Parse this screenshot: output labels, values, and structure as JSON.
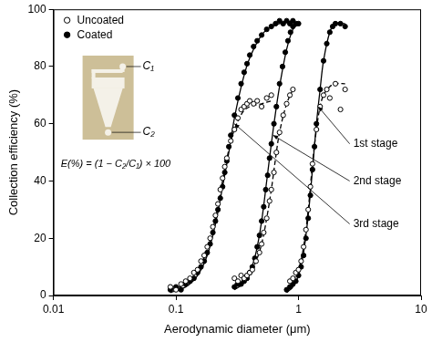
{
  "chart_data": {
    "type": "scatter",
    "x_label": "Aerodynamic diameter (μm)",
    "y_label": "Collection efficiency (%)",
    "log": "x",
    "grid": false,
    "legend": "top-left",
    "xlim": [
      0.01,
      10
    ],
    "xticks": [
      0.01,
      0.1,
      1,
      10
    ],
    "ylim": [
      0,
      100
    ],
    "yticks": [
      0,
      20,
      40,
      60,
      80,
      100
    ],
    "series": [
      {
        "name": "Uncoated",
        "type": "scatter",
        "marker": "circle_open",
        "color": "#000000",
        "x": [
          0.09,
          0.1,
          0.11,
          0.12,
          0.13,
          0.14,
          0.15,
          0.16,
          0.17,
          0.18,
          0.19,
          0.2,
          0.21,
          0.22,
          0.23,
          0.24,
          0.25,
          0.26,
          0.28,
          0.3,
          0.32,
          0.34,
          0.36,
          0.38,
          0.4,
          0.43,
          0.46,
          0.5,
          0.55,
          0.6,
          0.3,
          0.32,
          0.34,
          0.36,
          0.38,
          0.4,
          0.42,
          0.45,
          0.48,
          0.5,
          0.52,
          0.55,
          0.58,
          0.6,
          0.63,
          0.66,
          0.7,
          0.75,
          0.8,
          0.85,
          0.9,
          0.85,
          0.9,
          0.95,
          1.0,
          1.05,
          1.1,
          1.15,
          1.2,
          1.25,
          1.3,
          1.4,
          1.5,
          1.6,
          1.7,
          1.8,
          2.0,
          2.2,
          2.4
        ],
        "values": [
          3,
          2,
          4,
          5,
          6,
          8,
          9,
          12,
          14,
          17,
          20,
          24,
          28,
          32,
          37,
          41,
          45,
          48,
          54,
          58,
          62,
          65,
          66,
          67,
          68,
          67,
          68,
          66,
          69,
          70,
          6,
          5,
          7,
          6,
          7,
          8,
          9,
          12,
          15,
          18,
          22,
          27,
          33,
          37,
          43,
          50,
          57,
          63,
          67,
          70,
          72,
          5,
          6,
          8,
          9,
          12,
          17,
          23,
          30,
          38,
          46,
          58,
          66,
          70,
          72,
          69,
          74,
          65,
          72
        ]
      },
      {
        "name": "Coated",
        "type": "scatter",
        "marker": "circle_filled",
        "color": "#000000",
        "x": [
          0.09,
          0.1,
          0.11,
          0.12,
          0.13,
          0.14,
          0.15,
          0.16,
          0.17,
          0.18,
          0.19,
          0.2,
          0.21,
          0.22,
          0.23,
          0.24,
          0.25,
          0.26,
          0.27,
          0.28,
          0.3,
          0.32,
          0.34,
          0.36,
          0.38,
          0.4,
          0.43,
          0.46,
          0.5,
          0.55,
          0.6,
          0.65,
          0.7,
          0.75,
          0.8,
          0.85,
          0.9,
          0.3,
          0.32,
          0.34,
          0.36,
          0.38,
          0.4,
          0.42,
          0.44,
          0.46,
          0.48,
          0.5,
          0.52,
          0.54,
          0.56,
          0.58,
          0.6,
          0.63,
          0.66,
          0.7,
          0.74,
          0.78,
          0.82,
          0.86,
          0.9,
          0.95,
          1.0,
          0.8,
          0.85,
          0.9,
          0.95,
          1.0,
          1.05,
          1.1,
          1.15,
          1.2,
          1.25,
          1.3,
          1.35,
          1.4,
          1.5,
          1.6,
          1.7,
          1.8,
          1.9,
          2.0,
          2.2,
          2.4
        ],
        "values": [
          2,
          3,
          2,
          4,
          5,
          6,
          8,
          10,
          12,
          15,
          18,
          22,
          26,
          30,
          34,
          38,
          43,
          47,
          52,
          56,
          63,
          69,
          74,
          78,
          81,
          84,
          87,
          89,
          91,
          93,
          94,
          95,
          96,
          95,
          96,
          95,
          96,
          3,
          4,
          4,
          5,
          6,
          8,
          10,
          13,
          17,
          21,
          26,
          31,
          37,
          42,
          48,
          53,
          60,
          66,
          74,
          80,
          85,
          89,
          92,
          94,
          95,
          95,
          2,
          3,
          4,
          5,
          7,
          10,
          14,
          20,
          27,
          35,
          44,
          52,
          60,
          72,
          82,
          88,
          92,
          94,
          95,
          95,
          94
        ]
      },
      {
        "type": "line",
        "line_style": "solid",
        "color": "#000000",
        "x": [
          0.09,
          0.12,
          0.15,
          0.18,
          0.21,
          0.24,
          0.27,
          0.3,
          0.35,
          0.4,
          0.5,
          0.6,
          0.7,
          0.9
        ],
        "values": [
          1,
          3,
          7,
          14,
          25,
          38,
          50,
          62,
          75,
          83,
          91,
          94,
          95,
          96
        ]
      },
      {
        "type": "line",
        "line_style": "dashed",
        "color": "#000000",
        "x": [
          0.09,
          0.12,
          0.15,
          0.18,
          0.21,
          0.24,
          0.27,
          0.3,
          0.35,
          0.4,
          0.5,
          0.6
        ],
        "values": [
          2,
          4,
          9,
          16,
          27,
          40,
          51,
          58,
          64,
          66,
          67,
          68
        ]
      },
      {
        "type": "line",
        "line_style": "solid",
        "color": "#000000",
        "x": [
          0.3,
          0.35,
          0.4,
          0.45,
          0.5,
          0.55,
          0.6,
          0.65,
          0.7,
          0.8,
          0.9,
          1.0
        ],
        "values": [
          2,
          4,
          8,
          15,
          26,
          40,
          53,
          64,
          73,
          86,
          93,
          95
        ]
      },
      {
        "type": "line",
        "line_style": "dashed",
        "color": "#000000",
        "x": [
          0.3,
          0.35,
          0.4,
          0.45,
          0.5,
          0.55,
          0.6,
          0.65,
          0.7,
          0.8,
          0.9
        ],
        "values": [
          4,
          5,
          8,
          12,
          18,
          27,
          37,
          48,
          57,
          67,
          72
        ]
      },
      {
        "type": "line",
        "line_style": "solid",
        "color": "#000000",
        "x": [
          0.8,
          0.9,
          1.0,
          1.1,
          1.2,
          1.3,
          1.4,
          1.5,
          1.6,
          1.8,
          2.0,
          2.4
        ],
        "values": [
          1,
          3,
          7,
          15,
          28,
          44,
          60,
          72,
          82,
          92,
          95,
          95
        ]
      },
      {
        "type": "line",
        "line_style": "dashed",
        "color": "#000000",
        "x": [
          0.85,
          0.9,
          1.0,
          1.1,
          1.2,
          1.3,
          1.4,
          1.5,
          1.6,
          1.8,
          2.0,
          2.4
        ],
        "values": [
          3,
          5,
          9,
          17,
          30,
          46,
          58,
          66,
          70,
          73,
          74,
          74
        ]
      }
    ],
    "annotations": [
      {
        "text": "1st stage",
        "x": 2.8,
        "y": 53,
        "arrow_to": [
          1.45,
          66
        ]
      },
      {
        "text": "2nd stage",
        "x": 2.8,
        "y": 40,
        "arrow_to": [
          0.62,
          56
        ]
      },
      {
        "text": "3rd stage",
        "x": 2.8,
        "y": 25,
        "arrow_to": [
          0.3,
          60
        ]
      }
    ],
    "inset": {
      "inlet": {
        "text": "C₁",
        "x": 0.05,
        "y": 80
      },
      "outlet": {
        "text": "C₂",
        "x": 0.05,
        "y": 57
      },
      "formula": {
        "text": "E(%) = (1 − C₂/C₁) × 100",
        "x": 0.0115,
        "y": 46
      }
    }
  }
}
